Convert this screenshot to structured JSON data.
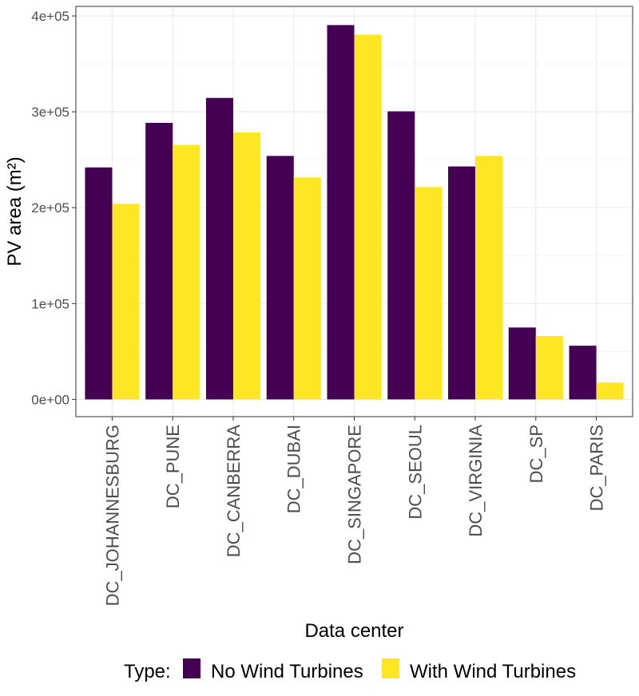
{
  "chart_data": {
    "type": "bar",
    "title": "",
    "xlabel": "Data center",
    "ylabel": "PV area (m²)",
    "ylim": [
      -18000,
      410000
    ],
    "yticks": [
      0,
      100000,
      200000,
      300000,
      400000
    ],
    "ytick_labels": [
      "0e+00",
      "1e+05",
      "2e+05",
      "3e+05",
      "4e+05"
    ],
    "grid": true,
    "legend_position": "bottom",
    "legend_title": "Type:",
    "categories": [
      "DC_JOHANNESBURG",
      "DC_PUNE",
      "DC_CANBERRA",
      "DC_DUBAI",
      "DC_SINGAPORE",
      "DC_SEOUL",
      "DC_VIRGINIA",
      "DC_SP",
      "DC_PARIS"
    ],
    "series": [
      {
        "name": "No Wind Turbines",
        "color": "#440154",
        "values": [
          242000,
          288500,
          314500,
          254000,
          390500,
          300500,
          243000,
          75000,
          56000
        ]
      },
      {
        "name": "With Wind Turbines",
        "color": "#fde725",
        "values": [
          204000,
          265500,
          278500,
          231500,
          380500,
          221500,
          254000,
          66000,
          17500
        ]
      }
    ]
  }
}
